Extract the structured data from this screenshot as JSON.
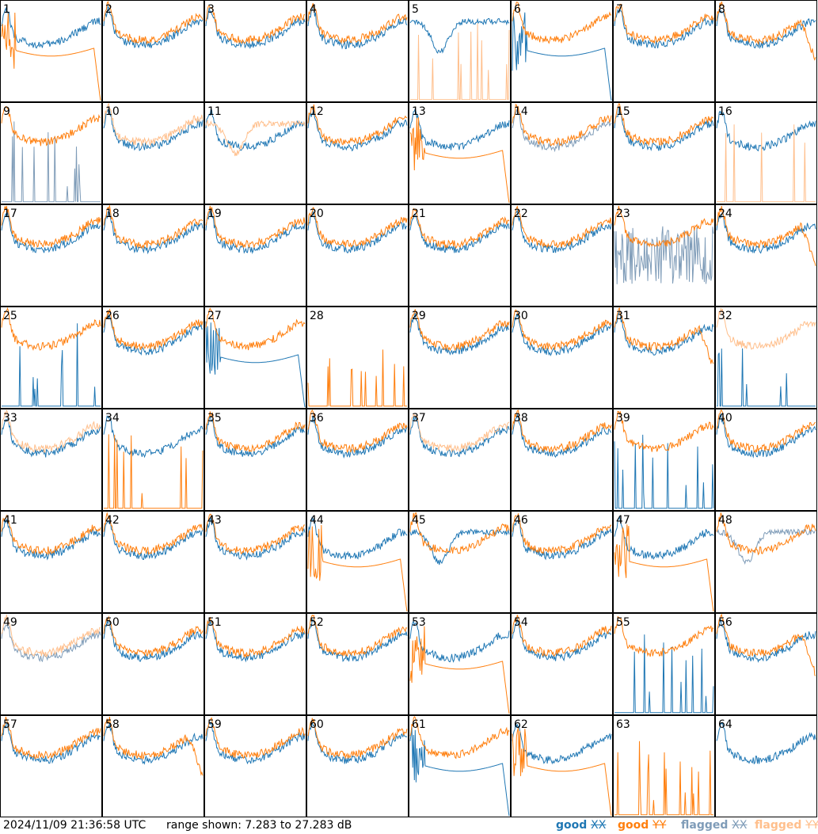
{
  "timestamp": "2024/11/09 21:36:58 UTC",
  "range_text": "range shown: 7.283 to 27.283 dB",
  "legend": {
    "good_xx": {
      "label": "good",
      "pol": "XX",
      "color": "#1f77b4"
    },
    "good_yy": {
      "label": "good",
      "pol": "YY",
      "color": "#ff7f0e"
    },
    "flagged_xx": {
      "label": "flagged",
      "pol": "XX",
      "color": "#7f9cb8"
    },
    "flagged_yy": {
      "label": "flagged",
      "pol": "YY",
      "color": "#ffbf8c"
    }
  },
  "chart_data": {
    "type": "line",
    "ylim": [
      7.283,
      27.283
    ],
    "grid": "8x8 small multiples",
    "panels": [
      {
        "id": "1",
        "xx": "good",
        "yy": "good",
        "xx_shape": "normal",
        "yy_shape": "rolloff"
      },
      {
        "id": "2",
        "xx": "good",
        "yy": "good",
        "xx_shape": "normal",
        "yy_shape": "normal"
      },
      {
        "id": "3",
        "xx": "good",
        "yy": "good",
        "xx_shape": "normal",
        "yy_shape": "normal"
      },
      {
        "id": "4",
        "xx": "good",
        "yy": "good",
        "xx_shape": "normal",
        "yy_shape": "normal"
      },
      {
        "id": "5",
        "xx": "good",
        "yy": "flagged",
        "xx_shape": "dip",
        "yy_shape": "spikes"
      },
      {
        "id": "6",
        "xx": "good",
        "yy": "good",
        "xx_shape": "rolloff",
        "yy_shape": "normal"
      },
      {
        "id": "7",
        "xx": "good",
        "yy": "good",
        "xx_shape": "normal",
        "yy_shape": "normal"
      },
      {
        "id": "8",
        "xx": "good",
        "yy": "good",
        "xx_shape": "normal",
        "yy_shape": "dropend"
      },
      {
        "id": "9",
        "xx": "flagged",
        "yy": "good",
        "xx_shape": "spikes",
        "yy_shape": "normal"
      },
      {
        "id": "10",
        "xx": "good",
        "yy": "flagged",
        "xx_shape": "normal",
        "yy_shape": "normal"
      },
      {
        "id": "11",
        "xx": "good",
        "yy": "flagged",
        "xx_shape": "normal",
        "yy_shape": "dip"
      },
      {
        "id": "12",
        "xx": "good",
        "yy": "good",
        "xx_shape": "normal",
        "yy_shape": "normal"
      },
      {
        "id": "13",
        "xx": "good",
        "yy": "good",
        "xx_shape": "normal",
        "yy_shape": "rolloff"
      },
      {
        "id": "14",
        "xx": "flagged",
        "yy": "good",
        "xx_shape": "normal",
        "yy_shape": "normal"
      },
      {
        "id": "15",
        "xx": "good",
        "yy": "good",
        "xx_shape": "normal",
        "yy_shape": "normal"
      },
      {
        "id": "16",
        "xx": "good",
        "yy": "flagged",
        "xx_shape": "normal",
        "yy_shape": "spikes"
      },
      {
        "id": "17",
        "xx": "good",
        "yy": "good",
        "xx_shape": "normal",
        "yy_shape": "normal"
      },
      {
        "id": "18",
        "xx": "good",
        "yy": "good",
        "xx_shape": "normal",
        "yy_shape": "normal"
      },
      {
        "id": "19",
        "xx": "good",
        "yy": "good",
        "xx_shape": "normal",
        "yy_shape": "normal"
      },
      {
        "id": "20",
        "xx": "good",
        "yy": "good",
        "xx_shape": "normal",
        "yy_shape": "normal"
      },
      {
        "id": "21",
        "xx": "good",
        "yy": "good",
        "xx_shape": "normal",
        "yy_shape": "normal"
      },
      {
        "id": "22",
        "xx": "good",
        "yy": "good",
        "xx_shape": "normal",
        "yy_shape": "normal"
      },
      {
        "id": "23",
        "xx": "flagged",
        "yy": "good",
        "xx_shape": "noisy",
        "yy_shape": "normal"
      },
      {
        "id": "24",
        "xx": "good",
        "yy": "good",
        "xx_shape": "normal",
        "yy_shape": "dropend"
      },
      {
        "id": "25",
        "xx": "good",
        "yy": "good",
        "xx_shape": "spikes",
        "yy_shape": "normal"
      },
      {
        "id": "26",
        "xx": "good",
        "yy": "good",
        "xx_shape": "normal",
        "yy_shape": "normal"
      },
      {
        "id": "27",
        "xx": "good",
        "yy": "good",
        "xx_shape": "rolloff",
        "yy_shape": "normal"
      },
      {
        "id": "28",
        "xx": "good",
        "yy": "good",
        "xx_shape": "none",
        "yy_shape": "spikes"
      },
      {
        "id": "29",
        "xx": "good",
        "yy": "good",
        "xx_shape": "normal",
        "yy_shape": "normal"
      },
      {
        "id": "30",
        "xx": "good",
        "yy": "good",
        "xx_shape": "normal",
        "yy_shape": "normal"
      },
      {
        "id": "31",
        "xx": "good",
        "yy": "good",
        "xx_shape": "normal",
        "yy_shape": "dropend"
      },
      {
        "id": "32",
        "xx": "good",
        "yy": "flagged",
        "xx_shape": "spikes",
        "yy_shape": "normal"
      },
      {
        "id": "33",
        "xx": "good",
        "yy": "flagged",
        "xx_shape": "normal",
        "yy_shape": "normal"
      },
      {
        "id": "34",
        "xx": "good",
        "yy": "good",
        "xx_shape": "normal",
        "yy_shape": "spikes"
      },
      {
        "id": "35",
        "xx": "good",
        "yy": "good",
        "xx_shape": "normal",
        "yy_shape": "normal"
      },
      {
        "id": "36",
        "xx": "good",
        "yy": "good",
        "xx_shape": "normal",
        "yy_shape": "normal"
      },
      {
        "id": "37",
        "xx": "good",
        "yy": "flagged",
        "xx_shape": "normal",
        "yy_shape": "normal"
      },
      {
        "id": "38",
        "xx": "good",
        "yy": "good",
        "xx_shape": "normal",
        "yy_shape": "normal"
      },
      {
        "id": "39",
        "xx": "good",
        "yy": "good",
        "xx_shape": "spikes",
        "yy_shape": "normal"
      },
      {
        "id": "40",
        "xx": "good",
        "yy": "good",
        "xx_shape": "normal",
        "yy_shape": "normal"
      },
      {
        "id": "41",
        "xx": "good",
        "yy": "good",
        "xx_shape": "normal",
        "yy_shape": "normal"
      },
      {
        "id": "42",
        "xx": "good",
        "yy": "good",
        "xx_shape": "normal",
        "yy_shape": "normal"
      },
      {
        "id": "43",
        "xx": "good",
        "yy": "good",
        "xx_shape": "normal",
        "yy_shape": "normal"
      },
      {
        "id": "44",
        "xx": "good",
        "yy": "good",
        "xx_shape": "normal",
        "yy_shape": "rolloff"
      },
      {
        "id": "45",
        "xx": "good",
        "yy": "good",
        "xx_shape": "dip",
        "yy_shape": "normal"
      },
      {
        "id": "46",
        "xx": "good",
        "yy": "good",
        "xx_shape": "normal",
        "yy_shape": "normal"
      },
      {
        "id": "47",
        "xx": "good",
        "yy": "good",
        "xx_shape": "normal",
        "yy_shape": "rolloff"
      },
      {
        "id": "48",
        "xx": "flagged",
        "yy": "good",
        "xx_shape": "dip",
        "yy_shape": "normal"
      },
      {
        "id": "49",
        "xx": "flagged",
        "yy": "flagged",
        "xx_shape": "normal",
        "yy_shape": "normal"
      },
      {
        "id": "50",
        "xx": "good",
        "yy": "good",
        "xx_shape": "normal",
        "yy_shape": "normal"
      },
      {
        "id": "51",
        "xx": "good",
        "yy": "good",
        "xx_shape": "normal",
        "yy_shape": "normal"
      },
      {
        "id": "52",
        "xx": "good",
        "yy": "good",
        "xx_shape": "normal",
        "yy_shape": "normal"
      },
      {
        "id": "53",
        "xx": "good",
        "yy": "good",
        "xx_shape": "normal",
        "yy_shape": "rolloff"
      },
      {
        "id": "54",
        "xx": "good",
        "yy": "good",
        "xx_shape": "normal",
        "yy_shape": "normal"
      },
      {
        "id": "55",
        "xx": "good",
        "yy": "good",
        "xx_shape": "spikes",
        "yy_shape": "normal"
      },
      {
        "id": "56",
        "xx": "good",
        "yy": "good",
        "xx_shape": "normal",
        "yy_shape": "dropend"
      },
      {
        "id": "57",
        "xx": "good",
        "yy": "good",
        "xx_shape": "normal",
        "yy_shape": "normal"
      },
      {
        "id": "58",
        "xx": "good",
        "yy": "good",
        "xx_shape": "normal",
        "yy_shape": "dropend"
      },
      {
        "id": "59",
        "xx": "good",
        "yy": "good",
        "xx_shape": "normal",
        "yy_shape": "normal"
      },
      {
        "id": "60",
        "xx": "good",
        "yy": "good",
        "xx_shape": "normal",
        "yy_shape": "normal"
      },
      {
        "id": "61",
        "xx": "good",
        "yy": "good",
        "xx_shape": "rolloff",
        "yy_shape": "normal"
      },
      {
        "id": "62",
        "xx": "good",
        "yy": "good",
        "xx_shape": "normal",
        "yy_shape": "rolloff"
      },
      {
        "id": "63",
        "xx": "good",
        "yy": "good",
        "xx_shape": "none",
        "yy_shape": "spikes"
      },
      {
        "id": "64",
        "xx": "good",
        "yy": "good",
        "xx_shape": "normal",
        "yy_shape": "none"
      }
    ]
  }
}
